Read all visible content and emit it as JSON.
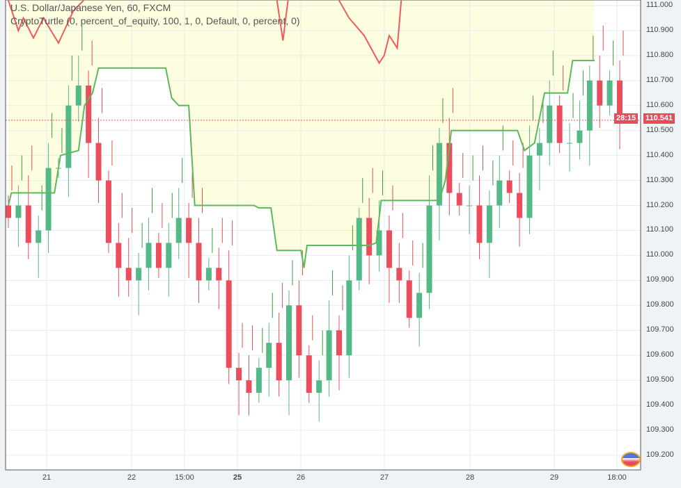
{
  "legend": {
    "symbol": "U.S. Dollar/Japanese Yen, 60, FXCM",
    "indicator": "CryptoTurtle (0, percent_of_equity, 100, 1, 0, Default, 0, percent, 0)"
  },
  "price_axis": [
    "111.000",
    "110.900",
    "110.800",
    "110.700",
    "110.600",
    "110.500",
    "110.400",
    "110.300",
    "110.200",
    "110.100",
    "110.000",
    "109.900",
    "109.800",
    "109.700",
    "109.600",
    "109.500",
    "109.400",
    "109.300",
    "109.200"
  ],
  "time_axis": [
    {
      "label": "21",
      "bold": false
    },
    {
      "label": "22",
      "bold": false
    },
    {
      "label": "15:00",
      "bold": false
    },
    {
      "label": "25",
      "bold": true
    },
    {
      "label": "26",
      "bold": false
    },
    {
      "label": "27",
      "bold": false
    },
    {
      "label": "28",
      "bold": false
    },
    {
      "label": "29",
      "bold": false
    },
    {
      "label": "18:00",
      "bold": false
    }
  ],
  "last_price": "110.541",
  "countdown": "28:15",
  "colors": {
    "up": "#53b987",
    "down": "#eb4d5c",
    "turtle": "#5cb85c",
    "fill": "#fdfde0",
    "equity": "#f25a5a"
  },
  "chart_data": {
    "type": "candlestick",
    "ylim": [
      109.15,
      111.02
    ],
    "closes": [
      110.15,
      110.2,
      110.05,
      110.1,
      110.35,
      110.35,
      110.6,
      110.68,
      110.45,
      110.3,
      110.05,
      109.95,
      109.9,
      109.95,
      110.05,
      109.95,
      110.05,
      110.15,
      110.05,
      109.9,
      109.95,
      109.9,
      109.55,
      109.5,
      109.45,
      109.55,
      109.65,
      109.5,
      109.8,
      109.6,
      109.45,
      109.5,
      109.7,
      109.6,
      109.9,
      110.15,
      110.0,
      110.1,
      109.95,
      109.9,
      109.75,
      109.85,
      110.2,
      110.45,
      110.25,
      110.2,
      110.2,
      110.05,
      110.2,
      110.3,
      110.25,
      110.15,
      110.4,
      110.45,
      110.6,
      110.45,
      110.45,
      110.5,
      110.7,
      110.6,
      110.7,
      110.54
    ],
    "turtle_line": [
      [
        0,
        110.2
      ],
      [
        0.3,
        110.25
      ],
      [
        4.6,
        110.25
      ],
      [
        5.2,
        110.4
      ],
      [
        7,
        110.42
      ],
      [
        7.6,
        110.6
      ],
      [
        8.4,
        110.65
      ],
      [
        9,
        110.75
      ],
      [
        15.7,
        110.75
      ],
      [
        16.3,
        110.63
      ],
      [
        17,
        110.6
      ],
      [
        18,
        110.6
      ],
      [
        18.6,
        110.2
      ],
      [
        24.5,
        110.2
      ],
      [
        25,
        110.19
      ],
      [
        26.2,
        110.19
      ],
      [
        26.8,
        110.02
      ],
      [
        29.2,
        110.02
      ],
      [
        29.5,
        109.95
      ],
      [
        29.8,
        110.04
      ],
      [
        36,
        110.04
      ],
      [
        36.7,
        110.05
      ],
      [
        37.2,
        110.22
      ],
      [
        43,
        110.22
      ],
      [
        43.6,
        110.3
      ],
      [
        44.2,
        110.5
      ],
      [
        50.8,
        110.5
      ],
      [
        51.5,
        110.42
      ],
      [
        52.5,
        110.45
      ],
      [
        53.5,
        110.65
      ],
      [
        55.8,
        110.65
      ],
      [
        56.3,
        110.78
      ],
      [
        58.5,
        110.78
      ]
    ],
    "equity_line": [
      [
        0,
        111.02
      ],
      [
        1,
        110.9
      ],
      [
        1.5,
        110.95
      ],
      [
        2.5,
        110.87
      ],
      [
        3.5,
        110.95
      ],
      [
        5,
        110.85
      ],
      [
        6.5,
        110.98
      ],
      [
        7.5,
        111.02
      ]
    ],
    "equity_line_2": [
      [
        26.8,
        111.02
      ],
      [
        27.4,
        110.86
      ],
      [
        27.9,
        111.02
      ]
    ],
    "equity_line_3": [
      [
        33,
        111.02
      ],
      [
        34,
        110.95
      ],
      [
        35.5,
        110.88
      ],
      [
        37,
        110.77
      ],
      [
        37.5,
        110.8
      ],
      [
        38,
        110.88
      ],
      [
        38.8,
        110.83
      ],
      [
        39.2,
        111.02
      ]
    ]
  }
}
